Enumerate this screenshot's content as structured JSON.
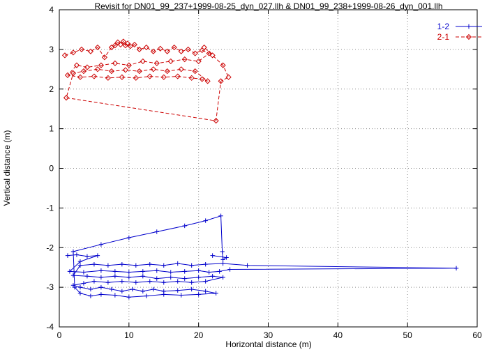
{
  "chart_data": {
    "type": "scatter",
    "title": "Revisit for DN01_99_237+1999-08-25_dyn_027.llh & DN01_99_238+1999-08-26_dyn_001.llh",
    "xlabel": "Horizontal distance (m)",
    "ylabel": "Vertical distance (m)",
    "xlim": [
      0,
      60
    ],
    "ylim": [
      -4,
      4
    ],
    "x_ticks": [
      0,
      10,
      20,
      30,
      40,
      50,
      60
    ],
    "y_ticks": [
      -4,
      -3,
      -2,
      -1,
      0,
      1,
      2,
      3,
      4
    ],
    "grid": "dotted",
    "grid_color": "#8a8a8a",
    "legend_position": "top-right",
    "series": [
      {
        "name": "1-2",
        "color": "#0000cc",
        "marker": "plus",
        "line": "solid",
        "points": [
          [
            1.2,
            -2.2
          ],
          [
            2.5,
            -2.18
          ],
          [
            4,
            -2.22
          ],
          [
            5.5,
            -2.2
          ],
          [
            3,
            -2.35
          ],
          [
            1.5,
            -2.6
          ],
          [
            3.5,
            -2.62
          ],
          [
            6,
            -2.58
          ],
          [
            8,
            -2.6
          ],
          [
            10,
            -2.62
          ],
          [
            12,
            -2.6
          ],
          [
            14,
            -2.58
          ],
          [
            16,
            -2.62
          ],
          [
            18,
            -2.6
          ],
          [
            20,
            -2.58
          ],
          [
            21.5,
            -2.62
          ],
          [
            23,
            -2.6
          ],
          [
            24.5,
            -2.55
          ],
          [
            57,
            -2.52
          ],
          [
            27,
            -2.45
          ],
          [
            23.5,
            -2.4
          ],
          [
            21,
            -2.42
          ],
          [
            19,
            -2.45
          ],
          [
            17,
            -2.4
          ],
          [
            15,
            -2.45
          ],
          [
            13,
            -2.42
          ],
          [
            11,
            -2.45
          ],
          [
            9,
            -2.42
          ],
          [
            7,
            -2.45
          ],
          [
            5,
            -2.42
          ],
          [
            3,
            -2.45
          ],
          [
            2,
            -2.7
          ],
          [
            4,
            -2.72
          ],
          [
            6,
            -2.75
          ],
          [
            8,
            -2.72
          ],
          [
            10,
            -2.75
          ],
          [
            12,
            -2.72
          ],
          [
            14,
            -2.78
          ],
          [
            16,
            -2.75
          ],
          [
            18,
            -2.78
          ],
          [
            20,
            -2.75
          ],
          [
            22,
            -2.72
          ],
          [
            23.5,
            -2.75
          ],
          [
            21,
            -2.85
          ],
          [
            19,
            -2.88
          ],
          [
            17,
            -2.85
          ],
          [
            15,
            -2.88
          ],
          [
            13,
            -2.85
          ],
          [
            11,
            -2.88
          ],
          [
            9,
            -2.85
          ],
          [
            7,
            -2.88
          ],
          [
            5,
            -2.85
          ],
          [
            3.5,
            -2.9
          ],
          [
            2,
            -2.95
          ],
          [
            3,
            -3.0
          ],
          [
            4.5,
            -3.05
          ],
          [
            6,
            -3.0
          ],
          [
            7.5,
            -3.05
          ],
          [
            9,
            -3.1
          ],
          [
            10.5,
            -3.05
          ],
          [
            12,
            -3.1
          ],
          [
            13.5,
            -3.05
          ],
          [
            15,
            -3.1
          ],
          [
            17,
            -3.08
          ],
          [
            19,
            -3.05
          ],
          [
            21,
            -3.1
          ],
          [
            22.5,
            -3.15
          ],
          [
            20,
            -3.18
          ],
          [
            17.5,
            -3.2
          ],
          [
            15,
            -3.18
          ],
          [
            12.5,
            -3.22
          ],
          [
            10,
            -3.25
          ],
          [
            8,
            -3.2
          ],
          [
            6,
            -3.18
          ],
          [
            4.5,
            -3.22
          ],
          [
            3,
            -3.15
          ],
          [
            2.2,
            -3.0
          ],
          [
            2,
            -2.1
          ],
          [
            6,
            -1.92
          ],
          [
            10,
            -1.75
          ],
          [
            14,
            -1.6
          ],
          [
            18,
            -1.45
          ],
          [
            21,
            -1.32
          ],
          [
            23.2,
            -1.2
          ],
          [
            23.4,
            -2.1
          ],
          [
            23.5,
            -2.3
          ],
          [
            24,
            -2.25
          ],
          [
            22,
            -2.2
          ]
        ]
      },
      {
        "name": "2-1",
        "color": "#cc0000",
        "marker": "diamond",
        "line": "dashed",
        "points": [
          [
            0.8,
            2.85
          ],
          [
            2,
            2.92
          ],
          [
            3.2,
            3.0
          ],
          [
            4.5,
            2.95
          ],
          [
            5.5,
            3.05
          ],
          [
            6.5,
            2.8
          ],
          [
            7.5,
            3.05
          ],
          [
            8,
            3.1
          ],
          [
            8.4,
            3.18
          ],
          [
            8.8,
            3.12
          ],
          [
            9.2,
            3.2
          ],
          [
            9.5,
            3.1
          ],
          [
            9.8,
            3.15
          ],
          [
            10.2,
            3.08
          ],
          [
            10.8,
            3.12
          ],
          [
            11.5,
            3.0
          ],
          [
            12.5,
            3.05
          ],
          [
            13.5,
            2.95
          ],
          [
            14.5,
            3.02
          ],
          [
            15.5,
            2.95
          ],
          [
            16.5,
            3.05
          ],
          [
            17.5,
            2.95
          ],
          [
            18.5,
            3.0
          ],
          [
            19.5,
            2.9
          ],
          [
            20.5,
            2.98
          ],
          [
            21.5,
            2.9
          ],
          [
            20,
            2.7
          ],
          [
            18,
            2.75
          ],
          [
            16,
            2.7
          ],
          [
            14,
            2.65
          ],
          [
            12,
            2.7
          ],
          [
            10,
            2.6
          ],
          [
            8,
            2.65
          ],
          [
            6,
            2.6
          ],
          [
            4,
            2.55
          ],
          [
            2.5,
            2.6
          ],
          [
            1.2,
            2.35
          ],
          [
            3,
            2.3
          ],
          [
            5,
            2.32
          ],
          [
            7,
            2.28
          ],
          [
            9,
            2.3
          ],
          [
            11,
            2.28
          ],
          [
            13,
            2.32
          ],
          [
            15,
            2.3
          ],
          [
            17,
            2.32
          ],
          [
            19,
            2.28
          ],
          [
            20.5,
            2.25
          ],
          [
            21.3,
            2.2
          ],
          [
            19.5,
            2.45
          ],
          [
            17.5,
            2.5
          ],
          [
            15.5,
            2.45
          ],
          [
            13.5,
            2.5
          ],
          [
            11.5,
            2.45
          ],
          [
            9.5,
            2.48
          ],
          [
            7.5,
            2.45
          ],
          [
            5.5,
            2.5
          ],
          [
            3.5,
            2.45
          ],
          [
            2,
            2.4
          ],
          [
            1,
            1.78
          ],
          [
            22.5,
            1.2
          ],
          [
            23.2,
            2.2
          ],
          [
            24.3,
            2.3
          ],
          [
            23.5,
            2.6
          ],
          [
            22,
            2.85
          ],
          [
            20.8,
            3.05
          ]
        ]
      }
    ]
  }
}
